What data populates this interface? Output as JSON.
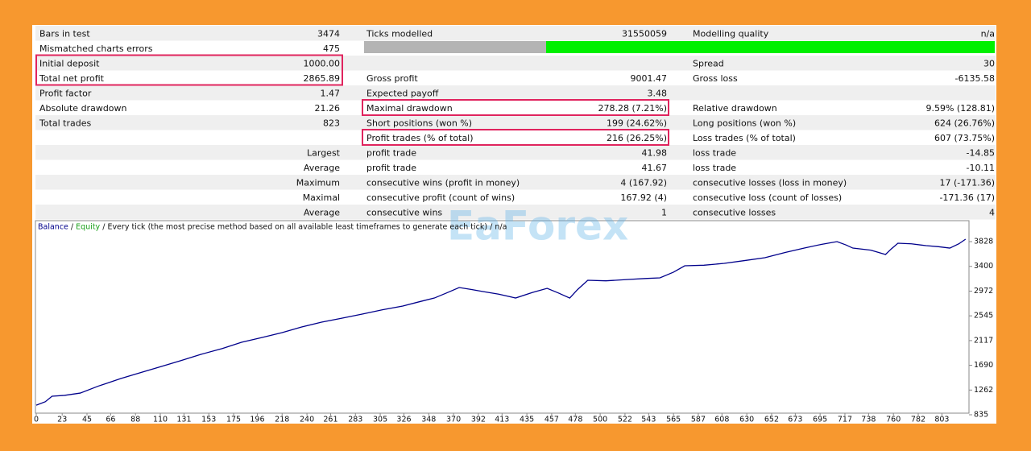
{
  "table": {
    "rows": [
      [
        "Bars in test",
        "3474",
        "Ticks modelled",
        "31550059",
        "Modelling quality",
        "n/a"
      ],
      [
        "Mismatched charts errors",
        "475",
        null,
        null,
        null,
        null
      ],
      [
        "Initial deposit",
        "1000.00",
        null,
        null,
        "Spread",
        "30"
      ],
      [
        "Total net profit",
        "2865.89",
        "Gross profit",
        "9001.47",
        "Gross loss",
        "-6135.58"
      ],
      [
        "Profit factor",
        "1.47",
        "Expected payoff",
        "3.48",
        null,
        null
      ],
      [
        "Absolute drawdown",
        "21.26",
        "Maximal drawdown",
        "278.28 (7.21%)",
        "Relative drawdown",
        "9.59% (128.81)"
      ],
      [
        "Total trades",
        "823",
        "Short positions (won %)",
        "199 (24.62%)",
        "Long positions (won %)",
        "624 (26.76%)"
      ],
      [
        null,
        null,
        "Profit trades (% of total)",
        "216 (26.25%)",
        "Loss trades (% of total)",
        "607 (73.75%)"
      ],
      [
        null,
        "Largest",
        "profit trade",
        "41.98",
        "loss trade",
        "-14.85"
      ],
      [
        null,
        "Average",
        "profit trade",
        "41.67",
        "loss trade",
        "-10.11"
      ],
      [
        null,
        "Maximum",
        "consecutive wins (profit in money)",
        "4 (167.92)",
        "consecutive losses (loss in money)",
        "17 (-171.36)"
      ],
      [
        null,
        "Maximal",
        "consecutive profit (count of wins)",
        "167.92 (4)",
        "consecutive loss (count of losses)",
        "-171.36 (17)"
      ],
      [
        null,
        "Average",
        "consecutive wins",
        "1",
        "consecutive losses",
        "4"
      ]
    ]
  },
  "watermark": "EaForex",
  "chart_data": {
    "type": "line",
    "separator": " / ",
    "equity": {
      "name": "Equity",
      "color": "#1aa01a"
    },
    "model": "Every tick (the most precise method based on all available least timeframes to generate each tick)",
    "quality": "n/a",
    "x": [
      0,
      8,
      14,
      25,
      39,
      55,
      75,
      92,
      111,
      128,
      146,
      165,
      182,
      200,
      218,
      235,
      253,
      270,
      289,
      307,
      325,
      340,
      353,
      365,
      375,
      386,
      396,
      410,
      425,
      440,
      453,
      463,
      473,
      480,
      489,
      505,
      525,
      540,
      553,
      565,
      575,
      592,
      610,
      628,
      646,
      664,
      681,
      696,
      710,
      718,
      724,
      740,
      753,
      758,
      764,
      776,
      789,
      800,
      810,
      818,
      824
    ],
    "series": [
      {
        "name": "Balance",
        "color": "#00008b",
        "values": [
          1000,
          1060,
          1155,
          1170,
          1210,
          1330,
          1461,
          1560,
          1670,
          1770,
          1879,
          1980,
          2088,
          2170,
          2255,
          2350,
          2436,
          2500,
          2575,
          2650,
          2714,
          2790,
          2853,
          2950,
          3034,
          3000,
          2965,
          2920,
          2853,
          2950,
          3020,
          2940,
          2853,
          3000,
          3160,
          3150,
          3174,
          3190,
          3202,
          3300,
          3410,
          3420,
          3452,
          3500,
          3550,
          3640,
          3716,
          3780,
          3828,
          3770,
          3716,
          3680,
          3605,
          3700,
          3800,
          3790,
          3758,
          3740,
          3716,
          3790,
          3870
        ]
      }
    ],
    "xlim": [
      0,
      827
    ],
    "ylim": [
      835,
      4190
    ],
    "xticks": [
      0,
      23,
      45,
      66,
      88,
      110,
      131,
      153,
      175,
      196,
      218,
      240,
      261,
      283,
      305,
      326,
      348,
      370,
      392,
      413,
      435,
      457,
      478,
      500,
      522,
      543,
      565,
      587,
      608,
      630,
      652,
      673,
      695,
      717,
      738,
      760,
      782,
      803
    ],
    "yticks": [
      835,
      1262,
      1690,
      2117,
      2545,
      2972,
      3400,
      3828
    ]
  }
}
